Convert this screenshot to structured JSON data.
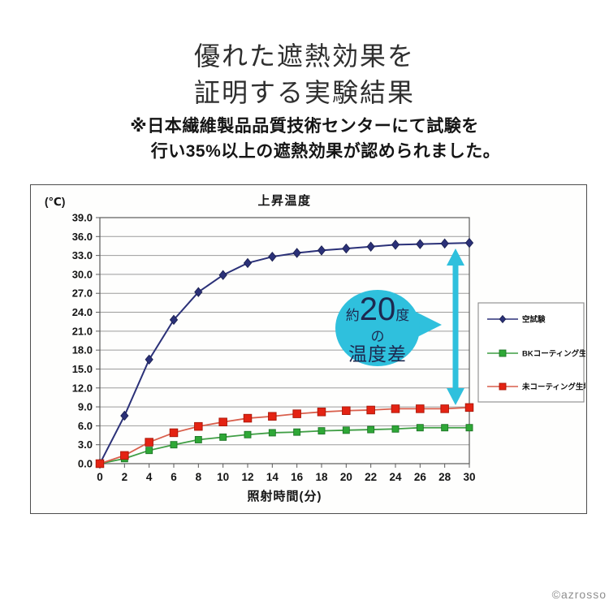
{
  "page": {
    "title_lines": [
      "優れた遮熱効果を",
      "証明する実験結果"
    ],
    "subtitle_lines": [
      "※日本繊維製品品質技術センターにて試験を",
      "行い35%以上の遮熱効果が認められました。"
    ],
    "credit": "©azrosso"
  },
  "chart_data": {
    "type": "line",
    "title": "上昇温度",
    "y_axis_unit": "(℃)",
    "xlabel": "照射時間(分)",
    "ylabel": "",
    "x": [
      0,
      2,
      4,
      6,
      8,
      10,
      12,
      14,
      16,
      18,
      20,
      22,
      24,
      26,
      28,
      30
    ],
    "xticks": [
      0,
      2,
      4,
      6,
      8,
      10,
      12,
      14,
      16,
      18,
      20,
      22,
      24,
      26,
      28,
      30
    ],
    "yticks": [
      39.0,
      36.0,
      33.0,
      30.0,
      27.0,
      24.0,
      21.0,
      18.0,
      15.0,
      12.0,
      9.0,
      6.0,
      3.0,
      0.0
    ],
    "ylim": [
      0,
      39
    ],
    "ytick_step": 3,
    "grid": true,
    "legend_position": "right-inside",
    "series": [
      {
        "name": "空試験",
        "marker": "diamond",
        "line_color": "#2b3178",
        "marker_color": "#2b3178",
        "marker_edge": "#191e4d",
        "values": [
          0.0,
          7.6,
          16.5,
          22.8,
          27.2,
          29.9,
          31.8,
          32.8,
          33.4,
          33.8,
          34.1,
          34.4,
          34.7,
          34.8,
          34.9,
          35.0
        ]
      },
      {
        "name": "BKコーティング生地",
        "marker": "square",
        "line_color": "#3f9e44",
        "marker_color": "#2ea836",
        "marker_edge": "#1e7527",
        "values": [
          0.0,
          0.8,
          2.1,
          3.0,
          3.8,
          4.2,
          4.6,
          4.9,
          5.0,
          5.2,
          5.3,
          5.4,
          5.5,
          5.7,
          5.7,
          5.7
        ]
      },
      {
        "name": "未コーティング生地",
        "marker": "square",
        "line_color": "#d95f4c",
        "marker_color": "#e42313",
        "marker_edge": "#a81607",
        "values": [
          0.0,
          1.3,
          3.4,
          4.9,
          5.9,
          6.6,
          7.2,
          7.5,
          7.9,
          8.2,
          8.4,
          8.5,
          8.7,
          8.7,
          8.7,
          8.9
        ]
      }
    ],
    "annotation": {
      "callout_prefix": "約",
      "callout_number": "20",
      "callout_suffix": "度",
      "callout_line2": "の",
      "callout_line3": "温度差",
      "accent_color": "#2fc0dd",
      "text_color": "#1d2950"
    },
    "colors": {
      "grid": "#9b9b9b",
      "axis": "#5a5a5a",
      "tick_text": "#141414"
    }
  }
}
